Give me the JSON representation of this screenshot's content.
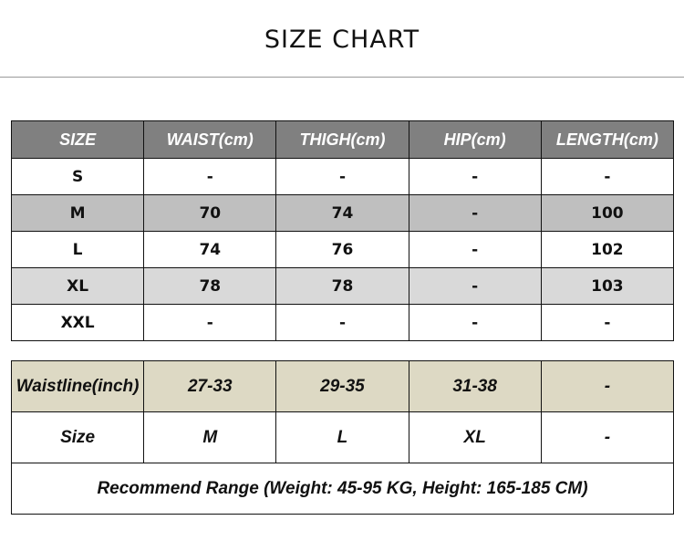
{
  "title": "SIZE CHART",
  "size_table": {
    "headers": [
      "SIZE",
      "WAIST(cm)",
      "THIGH(cm)",
      "HIP(cm)",
      "LENGTH(cm)"
    ],
    "rows": [
      [
        "S",
        "-",
        "-",
        "-",
        "-"
      ],
      [
        "M",
        "70",
        "74",
        "-",
        "100"
      ],
      [
        "L",
        "74",
        "76",
        "-",
        "102"
      ],
      [
        "XL",
        "78",
        "78",
        "-",
        "103"
      ],
      [
        "XXL",
        "-",
        "-",
        "-",
        "-"
      ]
    ]
  },
  "waist_table": {
    "rows": [
      [
        "Waistline(inch)",
        "27-33",
        "29-35",
        "31-38",
        "-"
      ],
      [
        "Size",
        "M",
        "L",
        "XL",
        "-"
      ]
    ],
    "note": "Recommend Range (Weight: 45-95 KG, Height: 165-185 CM)"
  },
  "colors": {
    "header": "#808080",
    "row_m": "#bfbfbf",
    "row_xl": "#d9d9d9",
    "waistline_row": "#ddd9c4"
  }
}
